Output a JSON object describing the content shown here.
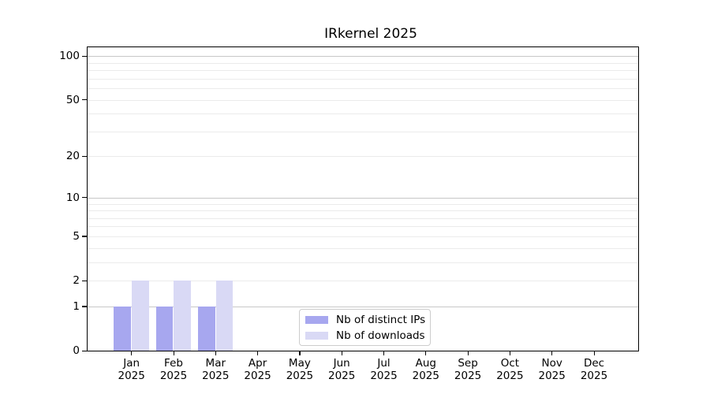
{
  "chart_data": {
    "type": "bar",
    "title": "IRkernel 2025",
    "x_tick_months": [
      "Jan",
      "Feb",
      "Mar",
      "Apr",
      "May",
      "Jun",
      "Jul",
      "Aug",
      "Sep",
      "Oct",
      "Nov",
      "Dec"
    ],
    "x_tick_year": "2025",
    "y_ticks": [
      0,
      1,
      2,
      5,
      10,
      20,
      50,
      100
    ],
    "y_major_gridlines": [
      1,
      10,
      100
    ],
    "y_minor_gridlines": [
      2,
      3,
      4,
      5,
      6,
      7,
      8,
      9,
      20,
      30,
      40,
      50,
      60,
      70,
      80,
      90
    ],
    "y_scale": "log1p",
    "ylim": [
      0,
      115
    ],
    "grid": true,
    "legend_position": "lower center",
    "series": [
      {
        "name": "Nb of distinct IPs",
        "color": "#a7a7ef",
        "values": [
          1,
          1,
          1,
          0,
          0,
          0,
          0,
          0,
          0,
          0,
          0,
          0
        ]
      },
      {
        "name": "Nb of downloads",
        "color": "#d9d9f5",
        "values": [
          2,
          2,
          2,
          0,
          0,
          0,
          0,
          0,
          0,
          0,
          0,
          0
        ]
      }
    ],
    "colors": {
      "major_grid": "#c7c7c7",
      "minor_grid": "#ebebeb",
      "spine": "#000000",
      "legend_border": "#cccccc",
      "text": "#000000"
    }
  }
}
